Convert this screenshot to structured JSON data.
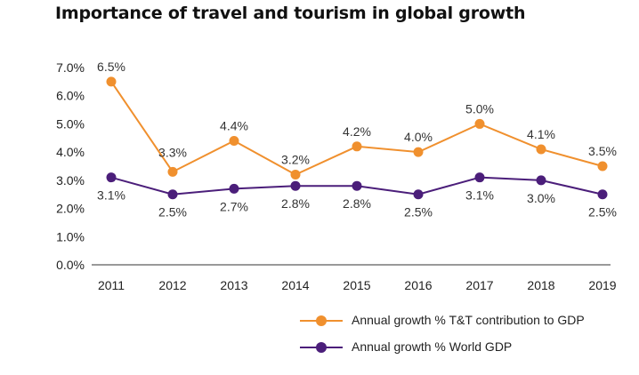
{
  "title": "Importance of travel and tourism in global growth",
  "colors": {
    "tt": "#f0902e",
    "world": "#4b1e7a",
    "axis": "#333333"
  },
  "chart_data": {
    "type": "line",
    "title": "Importance of travel and tourism in global growth",
    "xlabel": "",
    "ylabel": "",
    "categories": [
      "2011",
      "2012",
      "2013",
      "2014",
      "2015",
      "2016",
      "2017",
      "2018",
      "2019"
    ],
    "ylim": [
      0,
      7
    ],
    "yticks": [
      "0.0%",
      "1.0%",
      "2.0%",
      "3.0%",
      "4.0%",
      "5.0%",
      "6.0%",
      "7.0%"
    ],
    "grid": false,
    "legend_position": "bottom-right",
    "series": [
      {
        "name": "Annual growth % T&T contribution to GDP",
        "values": [
          6.5,
          3.3,
          4.4,
          3.2,
          4.2,
          4.0,
          5.0,
          4.1,
          3.5
        ],
        "labels": [
          "6.5%",
          "3.3%",
          "4.4%",
          "3.2%",
          "4.2%",
          "4.0%",
          "5.0%",
          "4.1%",
          "3.5%"
        ]
      },
      {
        "name": "Annual growth % World GDP",
        "values": [
          3.1,
          2.5,
          2.7,
          2.8,
          2.8,
          2.5,
          3.1,
          3.0,
          2.5
        ],
        "labels": [
          "3.1%",
          "2.5%",
          "2.7%",
          "2.8%",
          "2.8%",
          "2.5%",
          "3.1%",
          "3.0%",
          "2.5%"
        ]
      }
    ]
  },
  "legend": [
    {
      "label": "Annual growth % T&T contribution to GDP"
    },
    {
      "label": "Annual growth % World GDP"
    }
  ]
}
